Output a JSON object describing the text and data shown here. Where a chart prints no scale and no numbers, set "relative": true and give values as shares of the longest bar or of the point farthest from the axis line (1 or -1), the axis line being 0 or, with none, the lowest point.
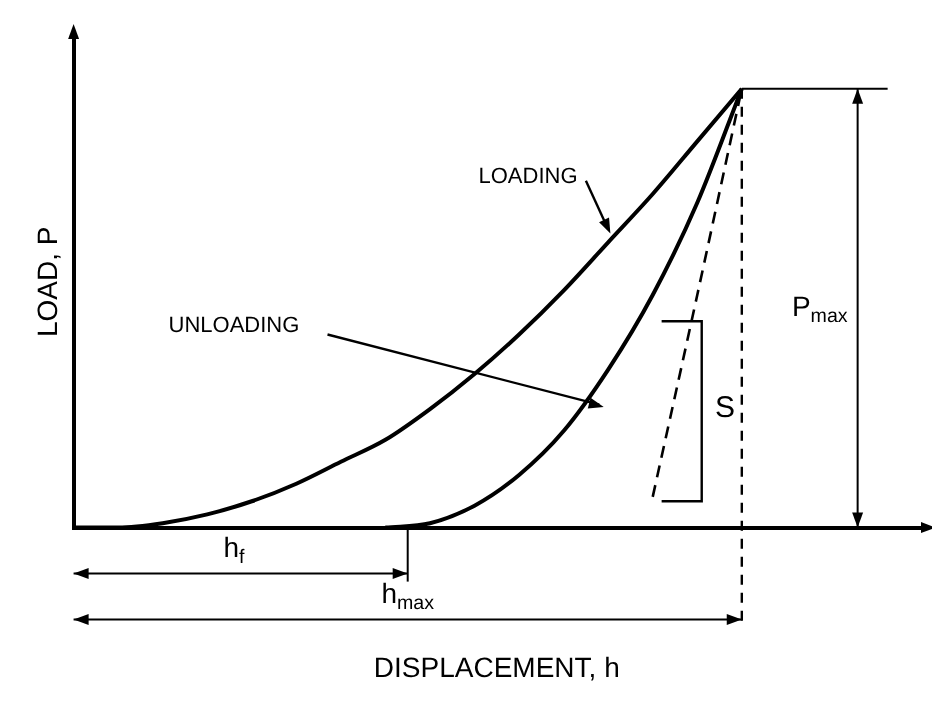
{
  "chart_data": {
    "type": "line",
    "xlabel": "DISPLACEMENT, h",
    "ylabel": "LOAD, P",
    "relative": true,
    "grid": false,
    "legend": false,
    "marker": "none",
    "categories": [
      null,
      null,
      null,
      null,
      null,
      null,
      null,
      null,
      null,
      null,
      null,
      null,
      null,
      null,
      null,
      null,
      null,
      null,
      null,
      null
    ],
    "series": [
      {
        "name": "LOADING",
        "color": "#000000",
        "line_style": "solid",
        "values": [
          0,
          0,
          0.01,
          0.03,
          0.06,
          0.1,
          0.15,
          0.2,
          0.27,
          0.35,
          0.44,
          0.54,
          0.65,
          0.76,
          0.88,
          1,
          null,
          null,
          null,
          null
        ]
      },
      {
        "name": "UNLOADING",
        "color": "#000000",
        "line_style": "solid",
        "values": [
          null,
          null,
          null,
          null,
          null,
          null,
          null,
          0,
          0.01,
          0.05,
          0.12,
          0.22,
          0.36,
          0.53,
          0.74,
          1,
          null,
          null,
          null,
          null
        ]
      },
      {
        "color": "#000000",
        "line_style": "dashed",
        "values": [
          null,
          null,
          null,
          null,
          null,
          null,
          null,
          null,
          null,
          null,
          null,
          null,
          null,
          0.07,
          0.53,
          1,
          null,
          null,
          null,
          null
        ]
      }
    ],
    "annotations": [
      "S",
      "P$_{max}$",
      "h$_{f}$",
      "h$_{max}$"
    ]
  }
}
